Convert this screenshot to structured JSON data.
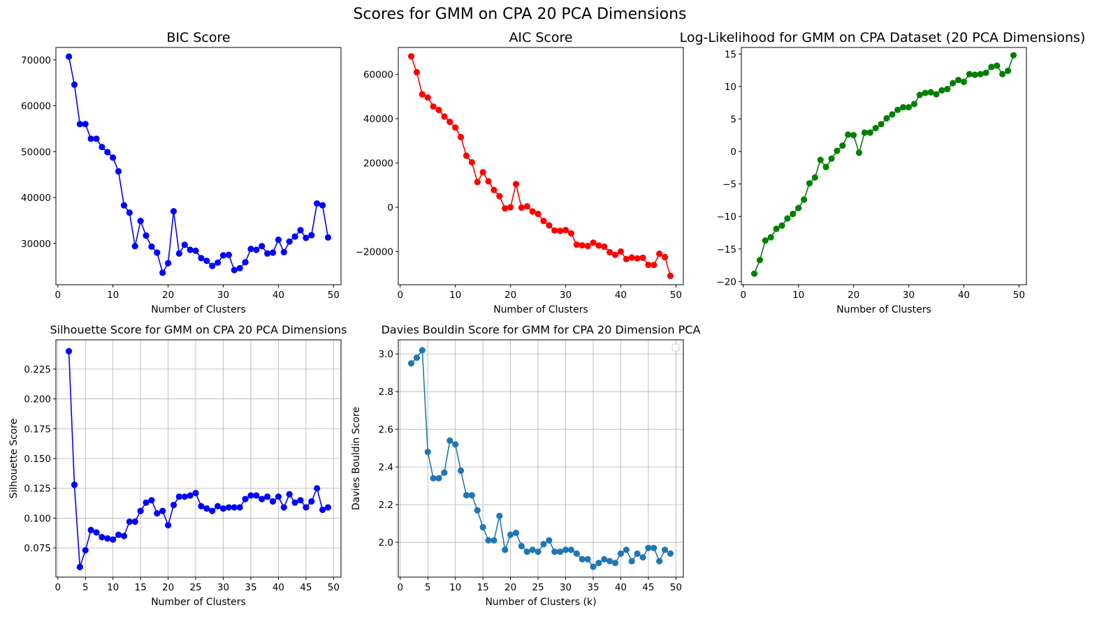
{
  "figure": {
    "suptitle": "Scores for GMM on CPA 20 PCA Dimensions"
  },
  "chart_data": [
    {
      "type": "line",
      "title": "BIC Score",
      "xlabel": "Number of Clusters",
      "ylabel": "",
      "color": "#0000ff",
      "grid": false,
      "xlim": [
        -0.35,
        51.35
      ],
      "ylim": [
        21000,
        72700
      ],
      "xticks": [
        0,
        10,
        20,
        30,
        40,
        50
      ],
      "yticks": [
        30000,
        40000,
        50000,
        60000,
        70000
      ],
      "x": [
        2,
        3,
        4,
        5,
        6,
        7,
        8,
        9,
        10,
        11,
        12,
        13,
        14,
        15,
        16,
        17,
        18,
        19,
        20,
        21,
        22,
        23,
        24,
        25,
        26,
        27,
        28,
        29,
        30,
        31,
        32,
        33,
        34,
        35,
        36,
        37,
        38,
        39,
        40,
        41,
        42,
        43,
        44,
        45,
        46,
        47,
        48,
        49
      ],
      "y": [
        70700,
        64600,
        56000,
        56000,
        52800,
        52800,
        51000,
        49900,
        48700,
        45700,
        38300,
        36700,
        29400,
        34900,
        31700,
        29300,
        28000,
        23600,
        25700,
        37000,
        27800,
        29700,
        28600,
        28400,
        26800,
        26200,
        25100,
        25800,
        27400,
        27500,
        24200,
        24600,
        25900,
        28800,
        28600,
        29400,
        27800,
        28000,
        30800,
        28100,
        30400,
        31500,
        32900,
        31200,
        31800,
        38700,
        38300,
        31300
      ]
    },
    {
      "type": "line",
      "title": "AIC Score",
      "xlabel": "Number of Clusters",
      "ylabel": "",
      "color": "#ff0000",
      "grid": false,
      "xlim": [
        -0.35,
        51.35
      ],
      "ylim": [
        -35000,
        72200
      ],
      "xticks": [
        0,
        10,
        20,
        30,
        40,
        50
      ],
      "yticks": [
        -20000,
        0,
        20000,
        40000,
        60000
      ],
      "x": [
        2,
        3,
        4,
        5,
        6,
        7,
        8,
        9,
        10,
        11,
        12,
        13,
        14,
        15,
        16,
        17,
        18,
        19,
        20,
        21,
        22,
        23,
        24,
        25,
        26,
        27,
        28,
        29,
        30,
        31,
        32,
        33,
        34,
        35,
        36,
        37,
        38,
        39,
        40,
        41,
        42,
        43,
        44,
        45,
        46,
        47,
        48,
        49
      ],
      "y": [
        68200,
        61000,
        51000,
        49600,
        45500,
        44000,
        41000,
        38600,
        36000,
        31700,
        23300,
        20300,
        11400,
        15800,
        11700,
        7800,
        5000,
        -500,
        0,
        10500,
        -200,
        400,
        -1900,
        -3000,
        -6200,
        -8200,
        -10500,
        -10700,
        -10300,
        -11800,
        -16900,
        -17200,
        -17500,
        -16000,
        -17300,
        -17800,
        -20300,
        -21500,
        -20000,
        -23400,
        -22700,
        -23100,
        -22800,
        -26000,
        -26100,
        -21000,
        -22500,
        -31000
      ]
    },
    {
      "type": "line",
      "title": "Log-Likelihood for GMM on CPA Dataset (20 PCA Dimensions)",
      "xlabel": "Number of Clusters",
      "ylabel": "",
      "color": "#008000",
      "grid": false,
      "xlim": [
        -0.35,
        51.35
      ],
      "ylim": [
        -20.5,
        16.0
      ],
      "xticks": [
        0,
        10,
        20,
        30,
        40,
        50
      ],
      "yticks": [
        -20,
        -15,
        -10,
        -5,
        0,
        5,
        10,
        15
      ],
      "x": [
        2,
        3,
        4,
        5,
        6,
        7,
        8,
        9,
        10,
        11,
        12,
        13,
        14,
        15,
        16,
        17,
        18,
        19,
        20,
        21,
        22,
        23,
        24,
        25,
        26,
        27,
        28,
        29,
        30,
        31,
        32,
        33,
        34,
        35,
        36,
        37,
        38,
        39,
        40,
        41,
        42,
        43,
        44,
        45,
        46,
        47,
        48,
        49
      ],
      "y": [
        -18.8,
        -16.7,
        -13.7,
        -13.2,
        -11.9,
        -11.4,
        -10.3,
        -9.6,
        -8.7,
        -7.4,
        -4.9,
        -4.0,
        -1.3,
        -2.4,
        -1.1,
        0.1,
        0.9,
        2.6,
        2.5,
        -0.2,
        2.9,
        2.9,
        3.6,
        4.2,
        5.1,
        5.7,
        6.4,
        6.8,
        6.8,
        7.3,
        8.7,
        9.0,
        9.1,
        8.8,
        9.4,
        9.6,
        10.5,
        11.0,
        10.7,
        11.9,
        11.8,
        11.9,
        12.1,
        13.0,
        13.2,
        11.9,
        12.4,
        14.8
      ]
    },
    {
      "type": "line",
      "title": "Silhouette Score for GMM on CPA 20 PCA Dimensions",
      "xlabel": "Number of Clusters",
      "ylabel": "Silhouette Score",
      "color": "#0000ff",
      "grid": true,
      "xlim": [
        -0.35,
        51.35
      ],
      "ylim": [
        0.0505,
        0.2495
      ],
      "xticks": [
        0,
        5,
        10,
        15,
        20,
        25,
        30,
        35,
        40,
        45,
        50
      ],
      "yticks": [
        0.075,
        0.1,
        0.125,
        0.15,
        0.175,
        0.2,
        0.225
      ],
      "ytick_labels": [
        "0.075",
        "0.100",
        "0.125",
        "0.150",
        "0.175",
        "0.200",
        "0.225"
      ],
      "x": [
        2,
        3,
        4,
        5,
        6,
        7,
        8,
        9,
        10,
        11,
        12,
        13,
        14,
        15,
        16,
        17,
        18,
        19,
        20,
        21,
        22,
        23,
        24,
        25,
        26,
        27,
        28,
        29,
        30,
        31,
        32,
        33,
        34,
        35,
        36,
        37,
        38,
        39,
        40,
        41,
        42,
        43,
        44,
        45,
        46,
        47,
        48,
        49
      ],
      "y": [
        0.24,
        0.128,
        0.059,
        0.073,
        0.09,
        0.088,
        0.084,
        0.083,
        0.082,
        0.086,
        0.085,
        0.097,
        0.097,
        0.106,
        0.113,
        0.115,
        0.104,
        0.106,
        0.094,
        0.111,
        0.118,
        0.118,
        0.119,
        0.121,
        0.11,
        0.108,
        0.106,
        0.11,
        0.108,
        0.109,
        0.109,
        0.109,
        0.116,
        0.119,
        0.119,
        0.116,
        0.118,
        0.114,
        0.118,
        0.109,
        0.12,
        0.113,
        0.115,
        0.109,
        0.114,
        0.125,
        0.107,
        0.109
      ]
    },
    {
      "type": "line",
      "title": "Davies Bouldin Score for GMM for CPA 20 Dimension PCA",
      "xlabel": "Number of Clusters (k)",
      "ylabel": "Davies Bouldin Score",
      "color": "#1f77b4",
      "grid": true,
      "legend": "upper right (empty)",
      "xlim": [
        -0.35,
        51.35
      ],
      "ylim": [
        1.815,
        3.075
      ],
      "xticks": [
        0,
        5,
        10,
        15,
        20,
        25,
        30,
        35,
        40,
        45,
        50
      ],
      "yticks": [
        2.0,
        2.2,
        2.4,
        2.6,
        2.8,
        3.0
      ],
      "ytick_labels": [
        "2.0",
        "2.2",
        "2.4",
        "2.6",
        "2.8",
        "3.0"
      ],
      "x": [
        2,
        3,
        4,
        5,
        6,
        7,
        8,
        9,
        10,
        11,
        12,
        13,
        14,
        15,
        16,
        17,
        18,
        19,
        20,
        21,
        22,
        23,
        24,
        25,
        26,
        27,
        28,
        29,
        30,
        31,
        32,
        33,
        34,
        35,
        36,
        37,
        38,
        39,
        40,
        41,
        42,
        43,
        44,
        45,
        46,
        47,
        48,
        49
      ],
      "y": [
        2.95,
        2.98,
        3.02,
        2.48,
        2.34,
        2.34,
        2.37,
        2.54,
        2.52,
        2.38,
        2.25,
        2.25,
        2.17,
        2.08,
        2.01,
        2.01,
        2.14,
        1.96,
        2.04,
        2.05,
        1.98,
        1.95,
        1.96,
        1.95,
        1.99,
        2.01,
        1.95,
        1.95,
        1.96,
        1.96,
        1.94,
        1.91,
        1.91,
        1.87,
        1.89,
        1.91,
        1.9,
        1.89,
        1.94,
        1.96,
        1.9,
        1.94,
        1.92,
        1.97,
        1.97,
        1.9,
        1.96,
        1.94
      ]
    }
  ]
}
